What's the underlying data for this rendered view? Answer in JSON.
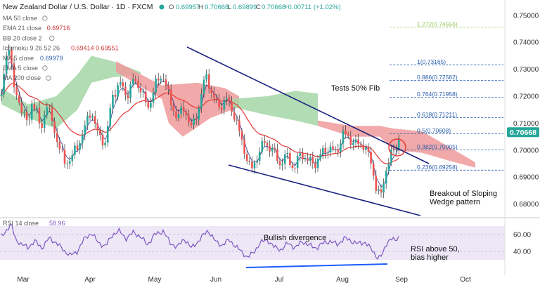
{
  "header": {
    "symbol_title": "New Zealand Dollar / U.S. Dollar · 1D · FXCM",
    "ohlc": {
      "o_label": "O",
      "o": "0.69957",
      "h_label": "H",
      "h": "0.70668",
      "l_label": "L",
      "l": "0.69899",
      "c_label": "C",
      "c": "0.70668",
      "change": "+0.00711 (+1.02%)"
    }
  },
  "legend": [
    {
      "label": "MA 50 close",
      "value": "",
      "color": "#cc3333"
    },
    {
      "label": "EMA 21 close",
      "value": "0.69716",
      "color": "#cc3333"
    },
    {
      "label": "BB 20 close 2",
      "value": "",
      "color": "#cc3333"
    },
    {
      "label": "Ichimoku 9 26 52 26",
      "value": "0.69414  0.69551",
      "color": "#cc3333"
    },
    {
      "label": "MA 5 close",
      "value": "0.69979",
      "color": "#2a5fb0"
    },
    {
      "label": "EMA 5 close",
      "value": "",
      "color": "#2a5fb0"
    },
    {
      "label": "MA 200 close",
      "value": "",
      "color": "#2a5fb0"
    }
  ],
  "colors": {
    "up": "#26a69a",
    "down": "#ef5350",
    "wick": "#333333",
    "cloud_bull": "#a5d6a7",
    "cloud_bear": "#ef9a9a",
    "trendline": "#1a237e",
    "ema": "#e53935",
    "ma5": "#283593",
    "fib": "#2a5fb0",
    "rsi": "#7e57c2",
    "rsi_band": "#ede7f6",
    "divergence": "#1e5eff",
    "price_tag": "#26a69a"
  },
  "chart_data": {
    "type": "candlestick",
    "title": "",
    "y_axis": {
      "min": 0.676,
      "max": 0.751,
      "ticks": [
        "0.75000",
        "0.74000",
        "0.73000",
        "0.72000",
        "0.71000",
        "0.70000",
        "0.69000",
        "0.68000"
      ],
      "tick_values": [
        0.75,
        0.74,
        0.73,
        0.72,
        0.71,
        0.7,
        0.69,
        0.68
      ]
    },
    "x_axis": {
      "labels": [
        "Mar",
        "Apr",
        "May",
        "Jun",
        "Jul",
        "Aug",
        "Sep",
        "Oct"
      ]
    },
    "last_price_label": "0.70668",
    "last_price": 0.70668,
    "fib_levels": [
      {
        "label": "1.272(0.74556)",
        "value": 0.74556
      },
      {
        "label": "1(0.73165)",
        "value": 0.73165
      },
      {
        "label": "0.886(0.72582)",
        "value": 0.72582
      },
      {
        "label": "0.764(0.71958)",
        "value": 0.71958
      },
      {
        "label": "0.618(0.71211)",
        "value": 0.71211
      },
      {
        "label": "0.5(0.70608)",
        "value": 0.70608
      },
      {
        "label": "0.382(0.70005)",
        "value": 0.70005
      },
      {
        "label": "0.236(0.69258)",
        "value": 0.69258
      }
    ],
    "annotations": {
      "fib_note": "Tests 50% Fib",
      "breakout_note_line1": "Breakout of Sloping",
      "breakout_note_line2": "Wedge pattern"
    }
  },
  "rsi": {
    "label": "RSI 14 close",
    "value": "58.96",
    "min": 20,
    "max": 75,
    "ticks": [
      "60.00",
      "40.00"
    ],
    "tick_values": [
      60,
      40
    ],
    "band": [
      30,
      70
    ],
    "annotations": {
      "divergence_note": "Bullish divergence",
      "rsi_note_line1": "RSI above 50,",
      "rsi_note_line2": "bias higher"
    }
  }
}
